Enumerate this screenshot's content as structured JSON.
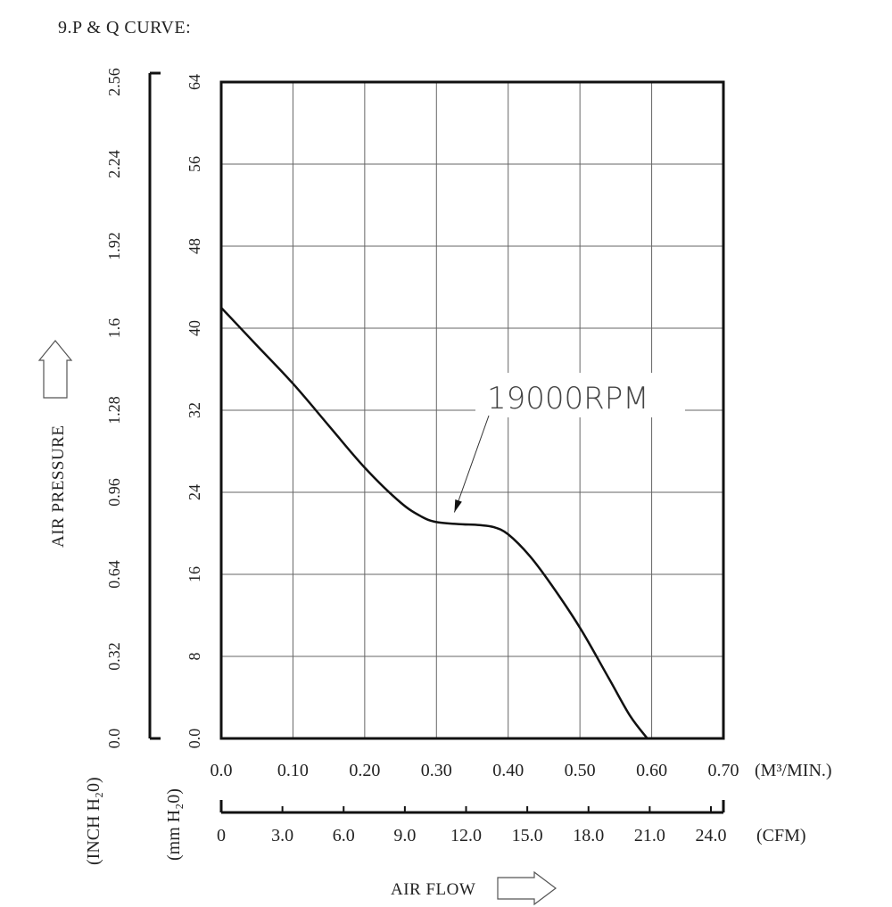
{
  "title": "9.P & Q CURVE:",
  "chart_data": {
    "type": "line",
    "title": "9.P & Q CURVE:",
    "xlabel": "AIR FLOW",
    "ylabel": "AIR PRESSURE",
    "grid": true,
    "x_unit_primary": "(M³/MIN.)",
    "x_unit_secondary": "(CFM)",
    "y_unit_primary": "(mm H₂0)",
    "y_unit_secondary": "(INCH H₂0)",
    "xlim": [
      0,
      0.7
    ],
    "ylim": [
      0,
      64
    ],
    "x_ticks": [
      "0.0",
      "0.10",
      "0.20",
      "0.30",
      "0.40",
      "0.50",
      "0.60",
      "0.70"
    ],
    "x_ticks_cfm": [
      "0",
      "3.0",
      "6.0",
      "9.0",
      "12.0",
      "15.0",
      "18.0",
      "21.0",
      "24.0"
    ],
    "y_ticks_mm": [
      "0.0",
      "8",
      "16",
      "24",
      "32",
      "40",
      "48",
      "56",
      "64"
    ],
    "y_ticks_inch": [
      "0.0",
      "0.32",
      "0.64",
      "0.96",
      "1.28",
      "1.6",
      "1.92",
      "2.24",
      "2.56"
    ],
    "series": [
      {
        "name": "19000RPM",
        "x": [
          0.0,
          0.05,
          0.1,
          0.15,
          0.2,
          0.25,
          0.28,
          0.3,
          0.33,
          0.36,
          0.38,
          0.4,
          0.43,
          0.46,
          0.5,
          0.54,
          0.57,
          0.594
        ],
        "y": [
          42.0,
          38.3,
          34.6,
          30.5,
          26.4,
          23.0,
          21.6,
          21.1,
          20.9,
          20.8,
          20.6,
          19.9,
          17.8,
          15.0,
          10.8,
          5.9,
          2.2,
          0.0
        ]
      }
    ],
    "annotation": "19000RPM",
    "annotation_point": [
      0.325,
      21.0
    ]
  }
}
